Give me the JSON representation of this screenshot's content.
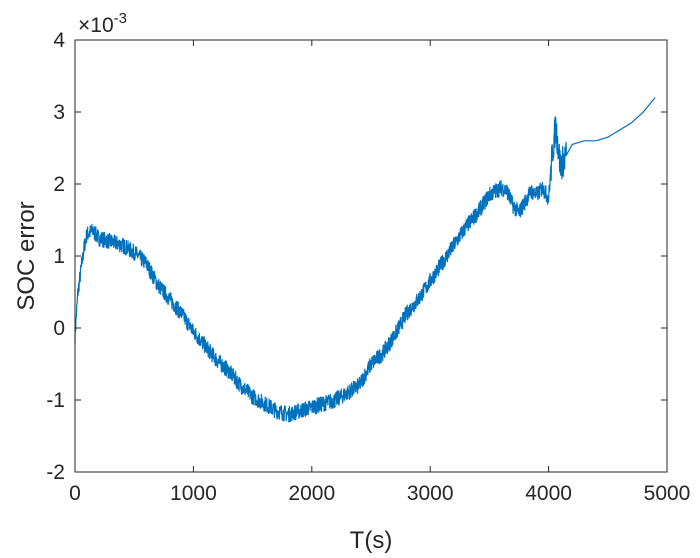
{
  "chart_data": {
    "type": "line",
    "title": "",
    "xlabel": "T(s)",
    "ylabel": "SOC error",
    "y_multiplier": {
      "base": "×10",
      "exponent": "-3"
    },
    "xlim": [
      0,
      5000
    ],
    "ylim": [
      -2,
      4
    ],
    "x_ticks": [
      "0",
      "1000",
      "2000",
      "3000",
      "4000",
      "5000"
    ],
    "y_ticks": [
      "-2",
      "-1",
      "0",
      "1",
      "2",
      "3",
      "4"
    ],
    "grid": false,
    "line_color": "#0072BD",
    "series": [
      {
        "x": [
          0,
          25,
          50,
          75,
          100,
          150,
          200,
          300,
          400,
          500,
          600,
          700,
          800,
          900,
          1000,
          1100,
          1200,
          1300,
          1400,
          1500,
          1600,
          1700,
          1800,
          1900,
          2000,
          2100,
          2200,
          2300,
          2400,
          2500,
          2600,
          2700,
          2800,
          2900,
          3000,
          3100,
          3200,
          3300,
          3400,
          3500,
          3600,
          3650,
          3700,
          3750,
          3800,
          3850,
          3900,
          3950,
          4000,
          4030,
          4060,
          4100,
          4150,
          4200,
          4300,
          4400,
          4500,
          4600,
          4700,
          4800,
          4900
        ],
        "y": [
          -0.1,
          0.5,
          0.8,
          1.1,
          1.3,
          1.35,
          1.25,
          1.2,
          1.15,
          1.05,
          0.9,
          0.6,
          0.4,
          0.2,
          -0.05,
          -0.25,
          -0.45,
          -0.6,
          -0.8,
          -0.95,
          -1.05,
          -1.15,
          -1.2,
          -1.15,
          -1.1,
          -1.05,
          -1.0,
          -0.9,
          -0.8,
          -0.5,
          -0.35,
          -0.1,
          0.2,
          0.4,
          0.65,
          0.9,
          1.15,
          1.4,
          1.6,
          1.85,
          1.95,
          1.9,
          1.7,
          1.6,
          1.75,
          1.9,
          1.85,
          1.95,
          1.8,
          2.4,
          2.8,
          2.25,
          2.4,
          2.55,
          2.6,
          2.6,
          2.65,
          2.75,
          2.85,
          3.0,
          3.2
        ]
      }
    ]
  }
}
